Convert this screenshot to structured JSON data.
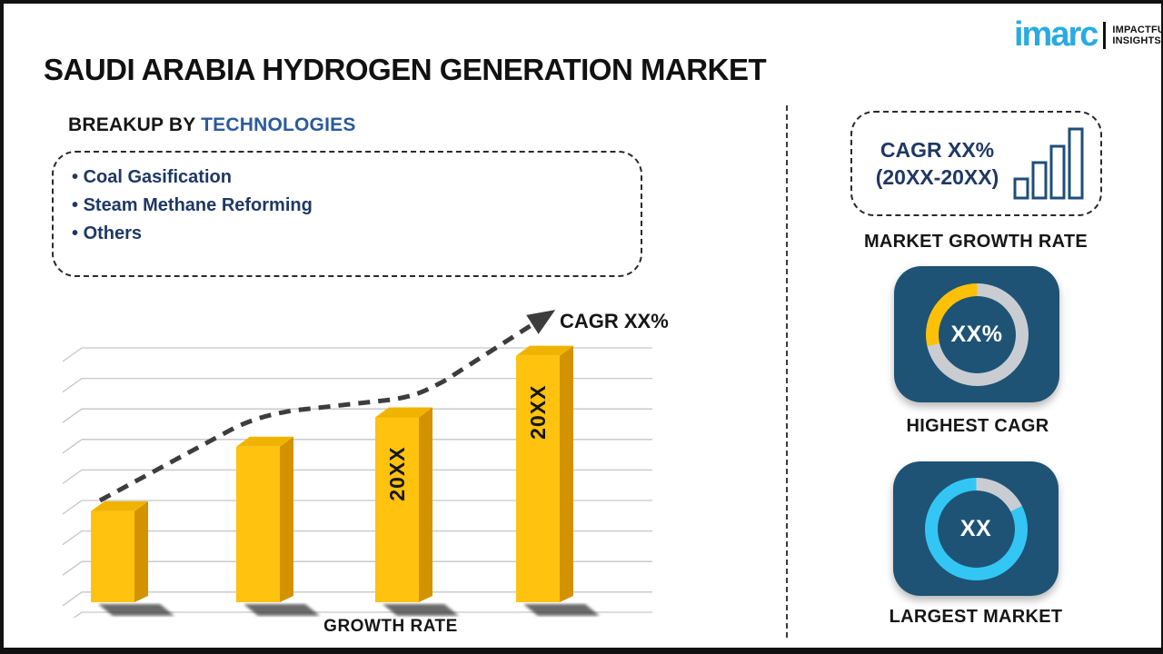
{
  "page": {
    "title": "SAUDI ARABIA HYDROGEN GENERATION MARKET"
  },
  "logo": {
    "brand": "imarc",
    "tagline_line1": "IMPACTFUL",
    "tagline_line2": "INSIGHTS",
    "brand_color": "#29ABE2"
  },
  "breakup": {
    "heading_prefix": "BREAKUP BY ",
    "heading_highlight": "TECHNOLOGIES",
    "highlight_color": "#2B5A9B",
    "items": [
      "Coal Gasification",
      "Steam Methane Reforming",
      "Others"
    ]
  },
  "chart_data": {
    "type": "bar",
    "title": "",
    "categories": [
      "",
      "",
      "20XX",
      "20XX"
    ],
    "values": [
      31,
      53,
      63,
      84
    ],
    "xlabel": "GROWTH RATE",
    "ylabel": "",
    "ylim": [
      0,
      100
    ],
    "grid": "horizontal-3d",
    "legend": "none",
    "bar_color": "#FFC20E",
    "bar_side_color": "#D39300",
    "bar_top_color": "#F0B400",
    "trend_label": "CAGR XX%",
    "trend_style": "dashed rising arrow"
  },
  "sidebar": {
    "growth_box": {
      "line1": "CAGR XX%",
      "line2": "(20XX-20XX)"
    },
    "growth_label": "MARKET GROWTH RATE",
    "highest_cagr": {
      "value": "XX%",
      "label": "HIGHEST CAGR",
      "arc_color": "#FFC107",
      "ring_color": "#C9CDD2",
      "card_color": "#1E5375"
    },
    "largest_market": {
      "value": "XX",
      "label": "LARGEST MARKET",
      "arc_color": "#33C6F4",
      "ring_color": "#C9CDD2",
      "card_color": "#1E5375"
    }
  }
}
